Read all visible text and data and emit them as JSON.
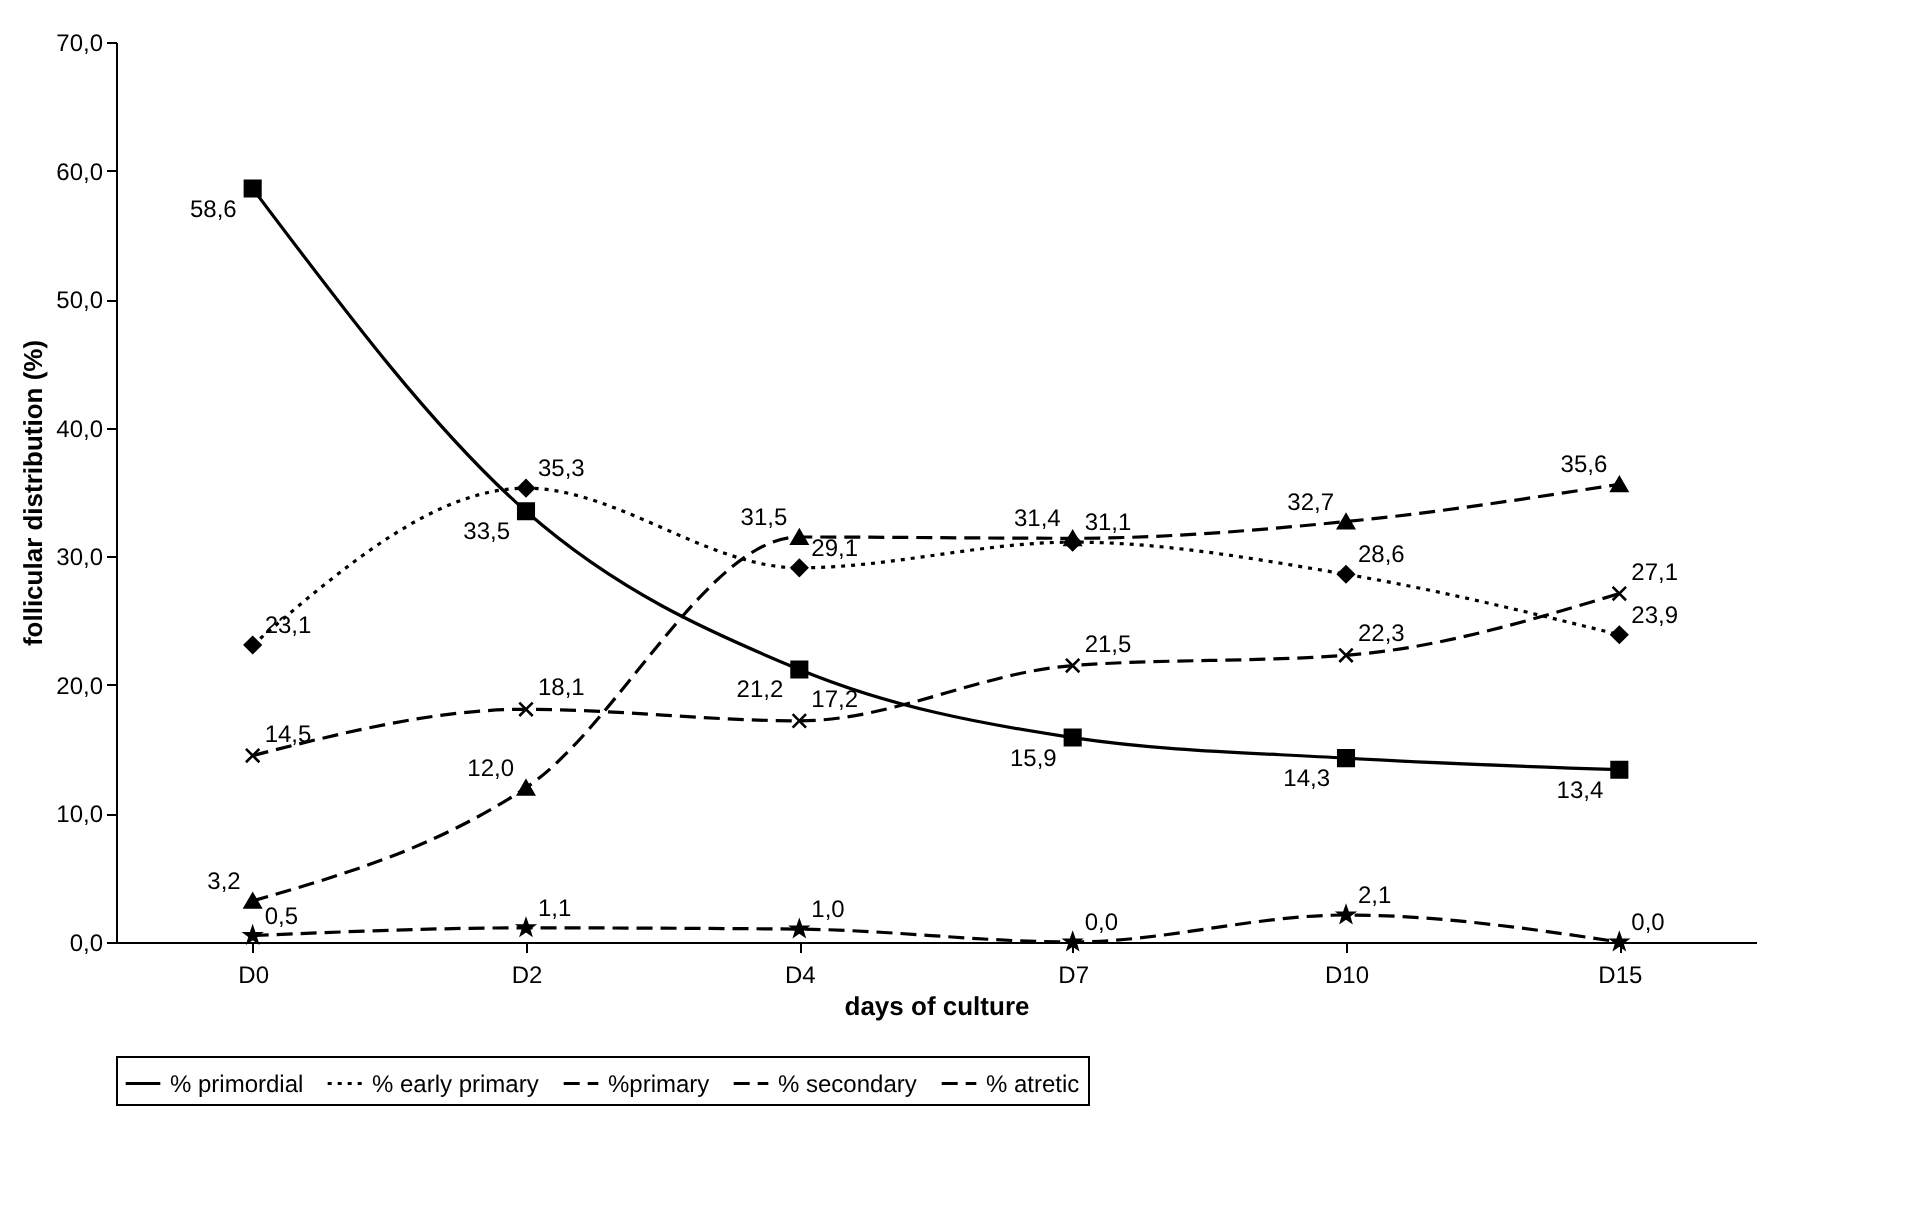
{
  "chart_data": {
    "type": "line",
    "xlabel": "days of culture",
    "ylabel": "follicular distribution (%)",
    "categories": [
      "D0",
      "D2",
      "D4",
      "D7",
      "D10",
      "D15"
    ],
    "ylim": [
      0,
      70
    ],
    "yticks": [
      {
        "value": 0,
        "label": "0,0"
      },
      {
        "value": 10,
        "label": "10,0"
      },
      {
        "value": 20,
        "label": "20,0"
      },
      {
        "value": 30,
        "label": "30,0"
      },
      {
        "value": 40,
        "label": "40,0"
      },
      {
        "value": 50,
        "label": "50,0"
      },
      {
        "value": 60,
        "label": "60,0"
      },
      {
        "value": 70,
        "label": "70,0"
      }
    ],
    "legend": "bottom",
    "series": [
      {
        "name": "% primordial",
        "color": "#000000",
        "marker": "square",
        "line_style": "solid",
        "values": [
          58.6,
          33.5,
          21.2,
          15.9,
          14.3,
          13.4
        ],
        "value_labels": [
          "58,6",
          "33,5",
          "21,2",
          "15,9",
          "14,3",
          "13,4"
        ]
      },
      {
        "name": "% early primary",
        "color": "#000000",
        "marker": "diamond",
        "line_style": "dotted",
        "values": [
          23.1,
          35.3,
          29.1,
          31.1,
          28.6,
          23.9
        ],
        "value_labels": [
          "23,1",
          "35,3",
          "29,1",
          "31,1",
          "28,6",
          "23,9"
        ]
      },
      {
        "name": "%primary",
        "color": "#000000",
        "marker": "triangle",
        "line_style": "dashed",
        "values": [
          3.2,
          12.0,
          31.5,
          31.4,
          32.7,
          35.6
        ],
        "value_labels": [
          "3,2",
          "12,0",
          "31,5",
          "31,4",
          "32,7",
          "35,6"
        ]
      },
      {
        "name": "% secondary",
        "color": "#000000",
        "marker": "star",
        "line_style": "dashed",
        "values": [
          0.5,
          1.1,
          1.0,
          0.0,
          2.1,
          0.0
        ],
        "value_labels": [
          "0,5",
          "1,1",
          "1,0",
          "0,0",
          "2,1",
          "0,0"
        ]
      },
      {
        "name": "% atretic",
        "color": "#000000",
        "marker": "cross",
        "line_style": "dashed",
        "values": [
          14.5,
          18.1,
          17.2,
          21.5,
          22.3,
          27.1
        ],
        "value_labels": [
          "14,5",
          "18,1",
          "17,2",
          "21,5",
          "22,3",
          "27,1"
        ]
      }
    ]
  }
}
